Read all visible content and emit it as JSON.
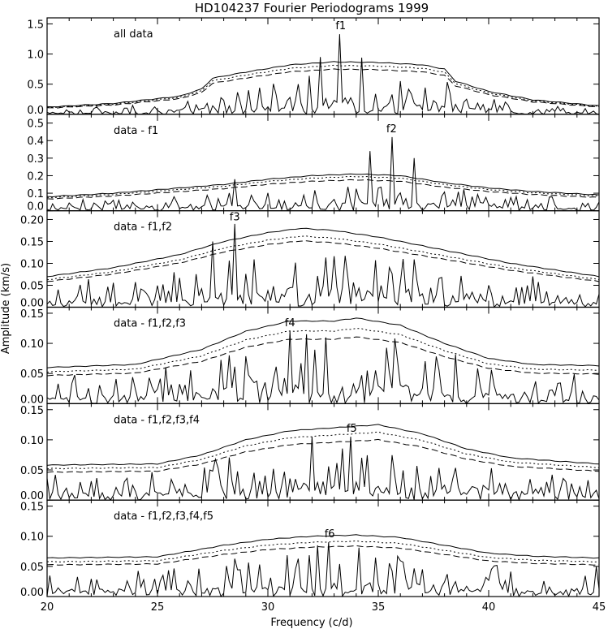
{
  "chart_data": {
    "type": "line",
    "title": "HD104237 Fourier Periodograms 1999",
    "xlabel": "Frequency (c/d)",
    "ylabel": "Amplitude (km/s)",
    "xlim": [
      20,
      45
    ],
    "x_ticks": [
      "20",
      "25",
      "30",
      "35",
      "40",
      "45"
    ],
    "panels": [
      {
        "label": "all data",
        "ylim": [
          0,
          1.6
        ],
        "y_ticks": [
          "0.0",
          "0.5",
          "1.0",
          "1.5"
        ],
        "peak_label": "f1",
        "peak_x": 33.3,
        "envelope": [
          [
            20,
            0.12
          ],
          [
            23,
            0.18
          ],
          [
            26,
            0.3
          ],
          [
            27,
            0.42
          ],
          [
            27.5,
            0.6
          ],
          [
            29,
            0.7
          ],
          [
            31,
            0.82
          ],
          [
            33,
            0.87
          ],
          [
            35,
            0.86
          ],
          [
            37,
            0.82
          ],
          [
            38,
            0.75
          ],
          [
            38.5,
            0.55
          ],
          [
            40,
            0.38
          ],
          [
            42,
            0.24
          ],
          [
            45,
            0.14
          ]
        ],
        "scales": [
          1.0,
          0.93,
          0.86
        ],
        "peaks": [
          [
            32.4,
            0.95
          ],
          [
            33.3,
            1.33
          ],
          [
            34.2,
            0.94
          ]
        ],
        "noise_base": 0.12
      },
      {
        "label": "data - f1",
        "ylim": [
          0,
          0.55
        ],
        "y_ticks": [
          "0.0",
          "0.1",
          "0.2",
          "0.3",
          "0.4",
          "0.5"
        ],
        "peak_label": "f2",
        "peak_x": 35.6,
        "envelope": [
          [
            20,
            0.08
          ],
          [
            23,
            0.1
          ],
          [
            26,
            0.13
          ],
          [
            28,
            0.15
          ],
          [
            30,
            0.18
          ],
          [
            32,
            0.2
          ],
          [
            34,
            0.21
          ],
          [
            36,
            0.2
          ],
          [
            38,
            0.16
          ],
          [
            40,
            0.13
          ],
          [
            42,
            0.11
          ],
          [
            45,
            0.09
          ]
        ],
        "scales": [
          1.0,
          0.93,
          0.84
        ],
        "peaks": [
          [
            28.5,
            0.18
          ],
          [
            34.6,
            0.34
          ],
          [
            35.6,
            0.42
          ],
          [
            36.6,
            0.3
          ]
        ],
        "noise_base": 0.09
      },
      {
        "label": "data - f1,f2",
        "ylim": [
          0,
          0.22
        ],
        "y_ticks": [
          "0.00",
          "0.05",
          "0.10",
          "0.15",
          "0.20"
        ],
        "peak_label": "f3",
        "peak_x": 28.5,
        "envelope": [
          [
            20,
            0.07
          ],
          [
            23,
            0.09
          ],
          [
            26,
            0.12
          ],
          [
            28,
            0.15
          ],
          [
            30,
            0.17
          ],
          [
            31.5,
            0.18
          ],
          [
            33,
            0.175
          ],
          [
            35,
            0.16
          ],
          [
            38,
            0.13
          ],
          [
            41,
            0.1
          ],
          [
            45,
            0.07
          ]
        ],
        "scales": [
          1.0,
          0.9,
          0.84
        ],
        "peaks": [
          [
            27.5,
            0.15
          ],
          [
            28.5,
            0.19
          ]
        ],
        "noise_base": 0.08
      },
      {
        "label": "data - f1,f2,f3",
        "ylim": [
          0,
          0.16
        ],
        "y_ticks": [
          "0.00",
          "0.05",
          "0.10",
          "0.15"
        ],
        "peak_label": "f4",
        "peak_x": 31.0,
        "envelope": [
          [
            20,
            0.06
          ],
          [
            24,
            0.065
          ],
          [
            27,
            0.09
          ],
          [
            29,
            0.12
          ],
          [
            31,
            0.137
          ],
          [
            33,
            0.137
          ],
          [
            34,
            0.142
          ],
          [
            36,
            0.13
          ],
          [
            38,
            0.1
          ],
          [
            40,
            0.075
          ],
          [
            42,
            0.065
          ],
          [
            45,
            0.063
          ]
        ],
        "scales": [
          1.0,
          0.88,
          0.78
        ],
        "peaks": [
          [
            31.0,
            0.12
          ],
          [
            31.8,
            0.115
          ],
          [
            32.6,
            0.11
          ]
        ],
        "noise_base": 0.09
      },
      {
        "label": "data - f1,f2,f3,f4",
        "ylim": [
          0,
          0.16
        ],
        "y_ticks": [
          "0.00",
          "0.05",
          "0.10",
          "0.15"
        ],
        "peak_label": "f5",
        "peak_x": 33.8,
        "envelope": [
          [
            20,
            0.058
          ],
          [
            25,
            0.06
          ],
          [
            27,
            0.075
          ],
          [
            29,
            0.1
          ],
          [
            31,
            0.115
          ],
          [
            33,
            0.12
          ],
          [
            35,
            0.125
          ],
          [
            37,
            0.11
          ],
          [
            39,
            0.085
          ],
          [
            41,
            0.07
          ],
          [
            45,
            0.06
          ]
        ],
        "scales": [
          1.0,
          0.9,
          0.8
        ],
        "peaks": [
          [
            32.0,
            0.105
          ],
          [
            33.8,
            0.105
          ]
        ],
        "noise_base": 0.09
      },
      {
        "label": "data - f1,f2,f3,f4,f5",
        "ylim": [
          0,
          0.16
        ],
        "y_ticks": [
          "0.00",
          "0.05",
          "0.10",
          "0.15"
        ],
        "peak_label": "f6",
        "peak_x": 32.8,
        "envelope": [
          [
            20,
            0.064
          ],
          [
            25,
            0.066
          ],
          [
            28,
            0.085
          ],
          [
            30,
            0.095
          ],
          [
            32,
            0.1
          ],
          [
            34,
            0.102
          ],
          [
            36,
            0.098
          ],
          [
            38,
            0.085
          ],
          [
            40,
            0.072
          ],
          [
            42,
            0.067
          ],
          [
            45,
            0.064
          ]
        ],
        "scales": [
          1.0,
          0.9,
          0.82
        ],
        "peaks": [
          [
            32.2,
            0.085
          ],
          [
            32.8,
            0.09
          ]
        ],
        "noise_base": 0.07
      }
    ]
  }
}
